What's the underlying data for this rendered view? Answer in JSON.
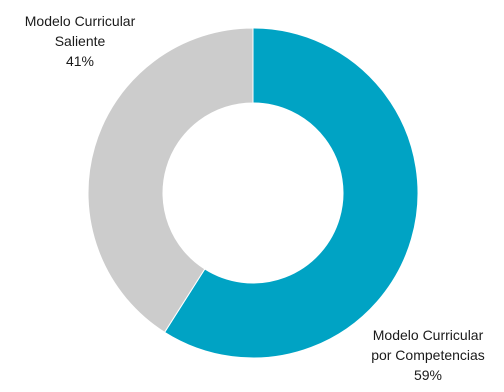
{
  "chart_data": {
    "type": "pie",
    "donut": true,
    "title": "",
    "slices": [
      {
        "name": "Modelo Curricular por Competencias",
        "label_lines": [
          "Modelo Curricular",
          "por Competencias",
          "59%"
        ],
        "value": 59,
        "color": "#00a3c4"
      },
      {
        "name": "Modelo Curricular Saliente",
        "label_lines": [
          "Modelo Curricular",
          "Saliente",
          "41%"
        ],
        "value": 41,
        "color": "#cccccc"
      }
    ],
    "legend": "none"
  }
}
